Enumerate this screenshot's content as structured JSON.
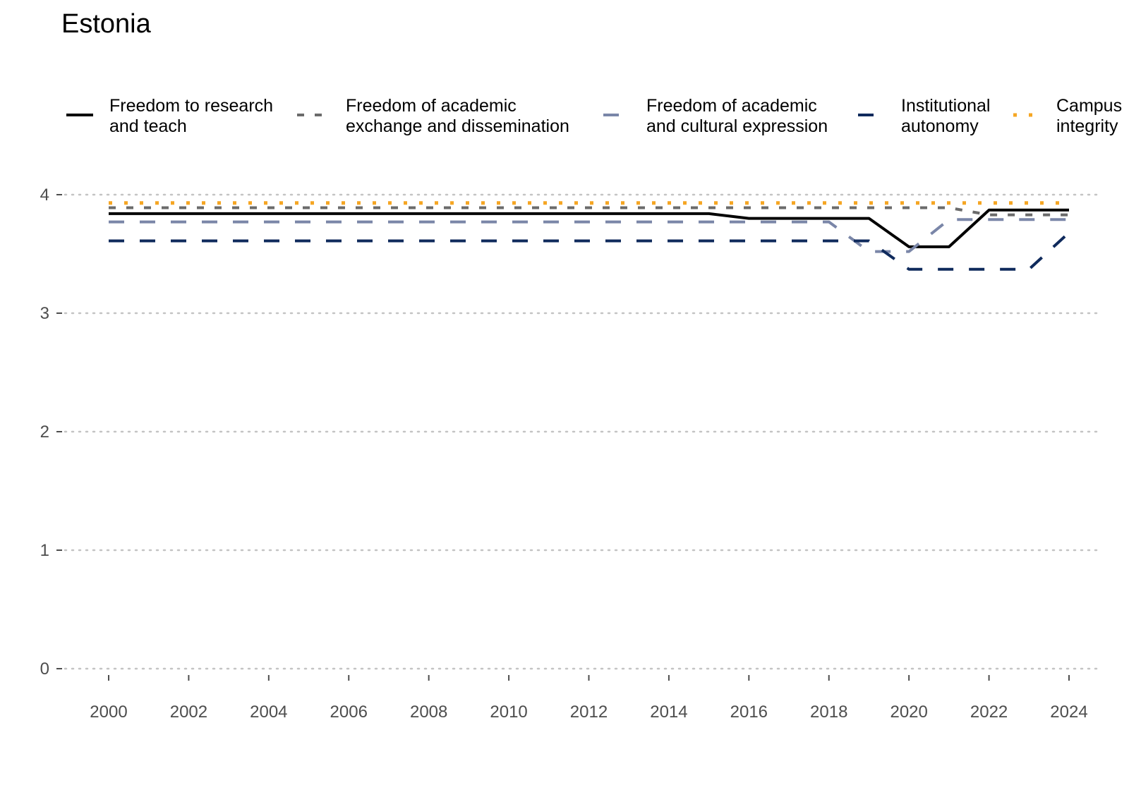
{
  "chart_data": {
    "type": "line",
    "title": "Estonia",
    "xlabel": "",
    "ylabel": "",
    "x": [
      2000,
      2001,
      2002,
      2003,
      2004,
      2005,
      2006,
      2007,
      2008,
      2009,
      2010,
      2011,
      2012,
      2013,
      2014,
      2015,
      2016,
      2017,
      2018,
      2019,
      2020,
      2021,
      2022,
      2023,
      2024
    ],
    "xticks": [
      2000,
      2002,
      2004,
      2006,
      2008,
      2010,
      2012,
      2014,
      2016,
      2018,
      2020,
      2022,
      2024
    ],
    "xticklabels": [
      "2000",
      "2002",
      "2004",
      "2006",
      "2008",
      "2010",
      "2012",
      "2014",
      "2016",
      "2018",
      "2020",
      "2022",
      "2024"
    ],
    "yticks": [
      0,
      1,
      2,
      3,
      4
    ],
    "yticklabels": [
      "0",
      "1",
      "2",
      "3",
      "4"
    ],
    "xlim": [
      2000,
      2024
    ],
    "ylim": [
      0,
      4
    ],
    "grid": "horizontal dotted",
    "legend_position": "top",
    "series": [
      {
        "name": "Freedom to research and teach",
        "legend_lines": [
          "Freedom to research",
          "and teach"
        ],
        "color": "#000000",
        "style": "solid",
        "values": [
          3.84,
          3.84,
          3.84,
          3.84,
          3.84,
          3.84,
          3.84,
          3.84,
          3.84,
          3.84,
          3.84,
          3.84,
          3.84,
          3.84,
          3.84,
          3.84,
          3.8,
          3.8,
          3.8,
          3.8,
          3.56,
          3.56,
          3.87,
          3.87,
          3.87
        ]
      },
      {
        "name": "Freedom of academic exchange and dissemination",
        "legend_lines": [
          "Freedom of academic",
          "exchange and dissemination"
        ],
        "color": "#6b6b6b",
        "style": "dashed-short",
        "values": [
          3.89,
          3.89,
          3.89,
          3.89,
          3.89,
          3.89,
          3.89,
          3.89,
          3.89,
          3.89,
          3.89,
          3.89,
          3.89,
          3.89,
          3.89,
          3.89,
          3.89,
          3.89,
          3.89,
          3.89,
          3.89,
          3.89,
          3.83,
          3.83,
          3.83
        ]
      },
      {
        "name": "Freedom of academic and cultural expression",
        "legend_lines": [
          "Freedom of academic",
          "and cultural expression"
        ],
        "color": "#7a86a8",
        "style": "dashed-long",
        "values": [
          3.77,
          3.77,
          3.77,
          3.77,
          3.77,
          3.77,
          3.77,
          3.77,
          3.77,
          3.77,
          3.77,
          3.77,
          3.77,
          3.77,
          3.77,
          3.77,
          3.77,
          3.77,
          3.77,
          3.52,
          3.52,
          3.79,
          3.79,
          3.79,
          3.79
        ]
      },
      {
        "name": "Institutional autonomy",
        "legend_lines": [
          "Institutional",
          "autonomy"
        ],
        "color": "#0f2a5c",
        "style": "dashed-long",
        "values": [
          3.61,
          3.61,
          3.61,
          3.61,
          3.61,
          3.61,
          3.61,
          3.61,
          3.61,
          3.61,
          3.61,
          3.61,
          3.61,
          3.61,
          3.61,
          3.61,
          3.61,
          3.61,
          3.61,
          3.61,
          3.37,
          3.37,
          3.37,
          3.37,
          3.68
        ]
      },
      {
        "name": "Campus integrity",
        "legend_lines": [
          "Campus",
          "integrity"
        ],
        "color": "#f5a623",
        "style": "dotted",
        "values": [
          3.93,
          3.93,
          3.93,
          3.93,
          3.93,
          3.93,
          3.93,
          3.93,
          3.93,
          3.93,
          3.93,
          3.93,
          3.93,
          3.93,
          3.93,
          3.93,
          3.93,
          3.93,
          3.93,
          3.93,
          3.93,
          3.93,
          3.93,
          3.93,
          3.93
        ]
      }
    ]
  }
}
